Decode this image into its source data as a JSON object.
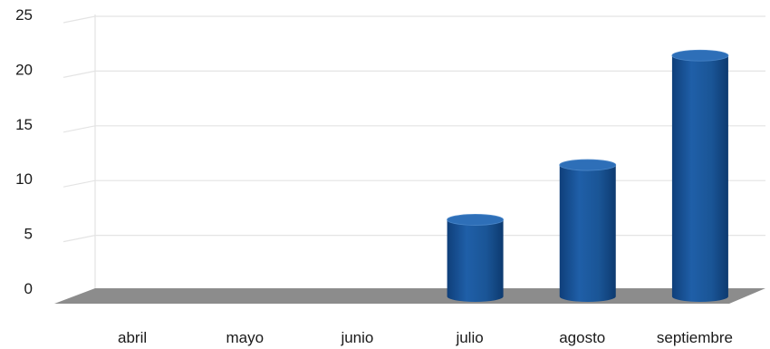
{
  "chart_data": {
    "type": "bar",
    "title": "",
    "xlabel": "",
    "ylabel": "",
    "categories": [
      "abril",
      "mayo",
      "junio",
      "julio",
      "agosto",
      "septiembre"
    ],
    "series": [
      {
        "values": [
          0,
          0,
          0,
          7,
          12,
          22
        ]
      }
    ],
    "ylim": [
      0,
      25
    ],
    "yticks": [
      0,
      5,
      10,
      15,
      20,
      25
    ],
    "grid": true,
    "style": "3d",
    "colors": {
      "bar": "#1f5a9e",
      "bar_top": "#2e6fb8",
      "floor": "#8c8c8c",
      "grid": "#e4e4e4"
    }
  }
}
